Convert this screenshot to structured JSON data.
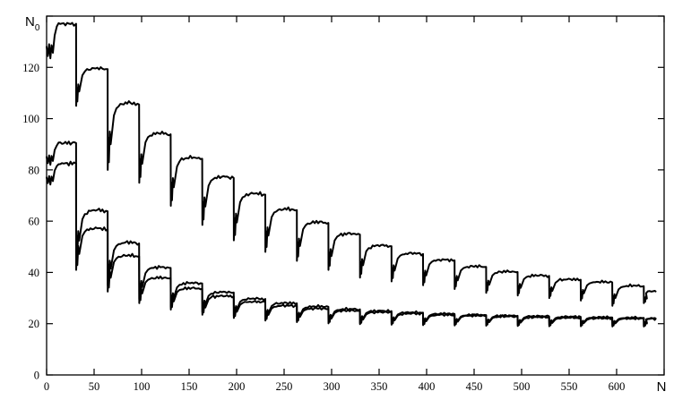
{
  "figure": {
    "background": "#ffffff",
    "axis_color": "#000000",
    "curve_color": "#000000"
  },
  "chart_data": {
    "type": "line",
    "title": "",
    "xlabel": "N",
    "ylabel": "N0",
    "xlim": [
      0,
      650
    ],
    "ylim": [
      0,
      140
    ],
    "grid": false,
    "frame": "box",
    "legend": "none",
    "x_ticks": [
      0,
      50,
      100,
      150,
      200,
      250,
      300,
      350,
      400,
      450,
      500,
      550,
      600,
      650
    ],
    "y_ticks": [
      0,
      20,
      40,
      60,
      80,
      100,
      120,
      140
    ],
    "x_tick_labels": [
      {
        "value": 0,
        "text": "0"
      },
      {
        "value": 50,
        "text": "50"
      },
      {
        "value": 100,
        "text": "100"
      },
      {
        "value": 150,
        "text": "150"
      },
      {
        "value": 200,
        "text": "200"
      },
      {
        "value": 250,
        "text": "250"
      },
      {
        "value": 300,
        "text": "300"
      },
      {
        "value": 350,
        "text": "350"
      },
      {
        "value": 400,
        "text": "400"
      },
      {
        "value": 450,
        "text": "450"
      },
      {
        "value": 500,
        "text": "500"
      },
      {
        "value": 550,
        "text": "550"
      },
      {
        "value": 600,
        "text": "600"
      }
    ],
    "y_tick_labels": [
      {
        "value": 0,
        "text": "0"
      },
      {
        "value": 20,
        "text": "20"
      },
      {
        "value": 40,
        "text": "40"
      },
      {
        "value": 60,
        "text": "60"
      },
      {
        "value": 80,
        "text": "80"
      },
      {
        "value": 100,
        "text": "100"
      },
      {
        "value": 120,
        "text": "120"
      }
    ],
    "axis_end_labels": {
      "x": "N",
      "y_main": "N",
      "y_sub": "0"
    },
    "x_end": 641,
    "drops_x": [
      31,
      64.2,
      97.4,
      130.6,
      163.8,
      197,
      230.2,
      263.4,
      296.6,
      329.8,
      363,
      396.2,
      429.4,
      462.6,
      495.8,
      529,
      562.2,
      595.4,
      628.6
    ],
    "series": [
      {
        "name": "upper-curve",
        "color": "#000000",
        "start": 128,
        "initial_plateau": 137,
        "plateaus": [
          119,
          105,
          93.5,
          84,
          76.5,
          70,
          64,
          59,
          54.5,
          50,
          47,
          44.5,
          42,
          40,
          38.5,
          37,
          36,
          34.5,
          32.5
        ],
        "minima": [
          105,
          80,
          75,
          66,
          58.5,
          52.5,
          48,
          44.5,
          41,
          38,
          36.5,
          35,
          33.5,
          32,
          31,
          30,
          29,
          27,
          28
        ]
      },
      {
        "name": "middle-curve",
        "color": "#000000",
        "start": 85,
        "initial_plateau": 90.5,
        "plateaus": [
          63.5,
          51,
          41.5,
          35.5,
          32,
          29.5,
          27.8,
          26.5,
          25.5,
          24.8,
          24.2,
          23.7,
          23.3,
          23,
          22.8,
          22.6,
          22.4,
          22.2,
          22
        ],
        "minima": [
          45,
          35,
          29.5,
          26.5,
          24.5,
          23,
          21.8,
          21,
          20.5,
          20.2,
          20,
          19.8,
          19.7,
          19.6,
          19.5,
          19.5,
          19.4,
          19.4,
          19.3
        ]
      },
      {
        "name": "lower-curve",
        "color": "#000000",
        "start": 77,
        "initial_plateau": 82.5,
        "plateaus": [
          56.5,
          46,
          37.5,
          33.5,
          30.5,
          28.3,
          26.8,
          25.7,
          24.9,
          24.3,
          23.8,
          23.3,
          23,
          22.7,
          22.4,
          22.2,
          22,
          21.9,
          21.8
        ],
        "minima": [
          41,
          32.5,
          28,
          25.5,
          23.5,
          22.2,
          21.2,
          20.6,
          20.1,
          19.8,
          19.6,
          19.4,
          19.3,
          19.2,
          19.1,
          19,
          19,
          18.9,
          18.9
        ]
      }
    ]
  }
}
